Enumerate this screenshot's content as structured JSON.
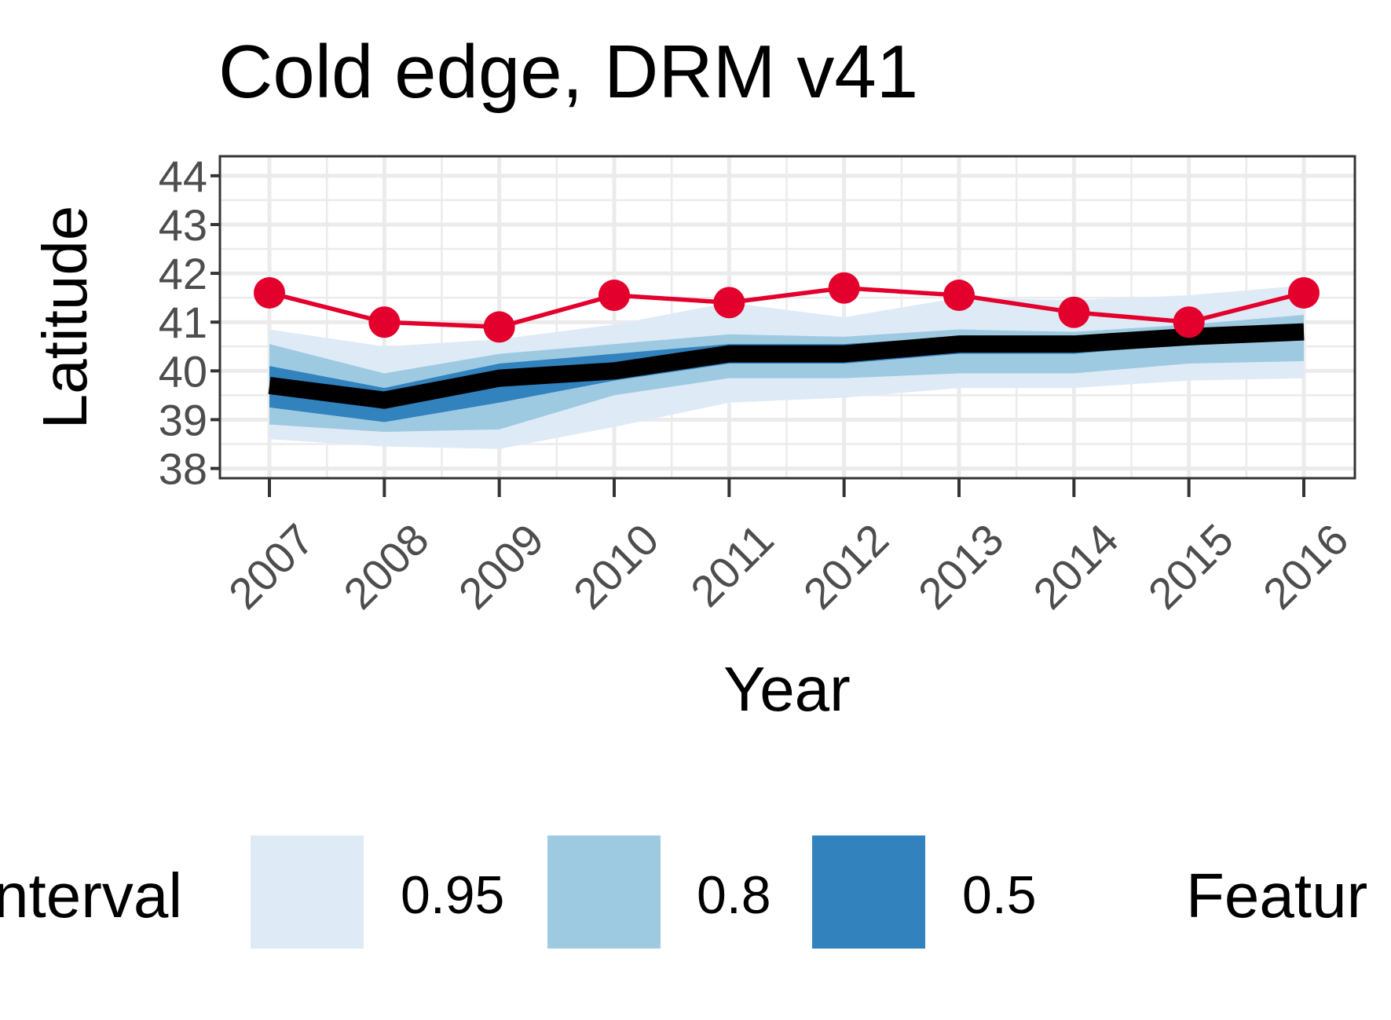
{
  "chart_data": {
    "type": "line",
    "title": "Cold edge, DRM v41",
    "xlabel": "Year",
    "ylabel": "Latitude",
    "x": [
      2007,
      2008,
      2009,
      2010,
      2011,
      2012,
      2013,
      2014,
      2015,
      2016
    ],
    "x_tick_labels": [
      "2007",
      "2008",
      "2009",
      "2010",
      "2011",
      "2012",
      "2013",
      "2014",
      "2015",
      "2016"
    ],
    "y_ticks": [
      38,
      39,
      40,
      41,
      42,
      43,
      44
    ],
    "y_tick_labels": [
      "38",
      "39",
      "40",
      "41",
      "42",
      "43",
      "44"
    ],
    "ylim": [
      37.8,
      44.4
    ],
    "grid": true,
    "intervals": [
      {
        "name": "0.95",
        "color": "#deebf7",
        "lower": [
          38.6,
          38.45,
          38.4,
          38.85,
          39.35,
          39.45,
          39.65,
          39.65,
          39.8,
          39.85
        ],
        "upper": [
          40.85,
          40.5,
          40.65,
          40.95,
          41.4,
          41.1,
          41.5,
          41.45,
          41.55,
          41.75
        ]
      },
      {
        "name": "0.8",
        "color": "#9ecae1",
        "lower": [
          38.9,
          38.75,
          38.8,
          39.5,
          39.85,
          39.85,
          39.95,
          39.95,
          40.15,
          40.2
        ],
        "upper": [
          40.55,
          39.95,
          40.35,
          40.55,
          40.75,
          40.7,
          40.85,
          40.8,
          40.95,
          41.15
        ]
      },
      {
        "name": "0.5",
        "color": "#3182bd",
        "lower": [
          39.25,
          38.95,
          39.35,
          39.8,
          40.15,
          40.15,
          40.35,
          40.35,
          40.55,
          40.65
        ],
        "upper": [
          40.1,
          39.65,
          40.15,
          40.35,
          40.55,
          40.55,
          40.7,
          40.7,
          40.85,
          40.95
        ]
      }
    ],
    "series": [
      {
        "color": "#000000",
        "values": [
          39.7,
          39.4,
          39.85,
          40.0,
          40.35,
          40.35,
          40.55,
          40.55,
          40.7,
          40.8
        ]
      },
      {
        "color": "#e3002d",
        "marker": "circle",
        "values": [
          41.6,
          41.0,
          40.9,
          41.55,
          41.4,
          41.7,
          41.55,
          41.2,
          41.0,
          41.6
        ]
      }
    ],
    "legend": {
      "position": "bottom",
      "interval_title": "nterval",
      "feature_title": "Featur",
      "entries": [
        {
          "label": "0.95",
          "color": "#deebf7"
        },
        {
          "label": "0.8",
          "color": "#9ecae1"
        },
        {
          "label": "0.5",
          "color": "#3182bd"
        }
      ]
    }
  }
}
